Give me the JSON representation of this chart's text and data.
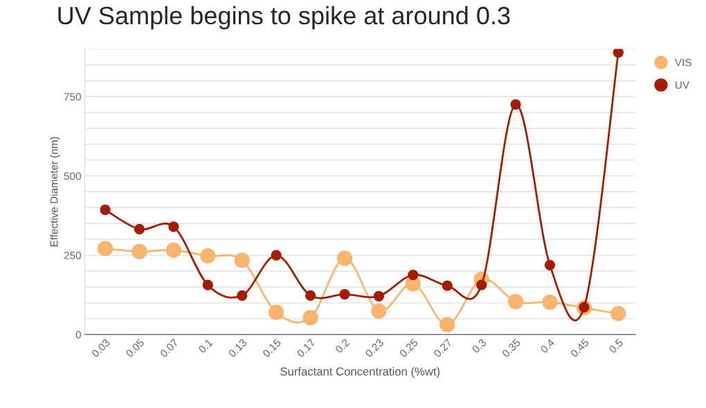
{
  "chart_data": {
    "type": "line",
    "title": "UV Sample begins to spike at around 0.3",
    "xlabel": "Surfactant Concentration (%wt)",
    "ylabel": "Effective Diameter (nm)",
    "categories": [
      "0.03",
      "0.05",
      "0.07",
      "0.1",
      "0.13",
      "0.15",
      "0.17",
      "0.2",
      "0.23",
      "0.25",
      "0.27",
      "0.3",
      "0.35",
      "0.4",
      "0.45",
      "0.5"
    ],
    "series": [
      {
        "name": "VIS",
        "color": "#f9b46e",
        "values": [
          271,
          262,
          266,
          248,
          234,
          70,
          53,
          240,
          74,
          160,
          31,
          174,
          104,
          102,
          84,
          66
        ]
      },
      {
        "name": "UV",
        "color": "#a61c00",
        "values": [
          393,
          332,
          340,
          156,
          123,
          250,
          123,
          127,
          121,
          188,
          154,
          156,
          725,
          219,
          86,
          889
        ]
      }
    ],
    "ylim": [
      0,
      900
    ],
    "yticks": [
      0,
      {
        "value": 50,
        "label": null
      },
      {
        "value": 100,
        "label": null
      },
      {
        "value": 150,
        "label": null
      },
      {
        "value": 200,
        "label": null
      },
      250,
      {
        "value": 300,
        "label": null
      },
      {
        "value": 350,
        "label": null
      },
      {
        "value": 400,
        "label": null
      },
      {
        "value": 450,
        "label": null
      },
      500,
      {
        "value": 550,
        "label": null
      },
      {
        "value": 600,
        "label": null
      },
      {
        "value": 650,
        "label": null
      },
      {
        "value": 700,
        "label": null
      },
      750,
      {
        "value": 800,
        "label": null
      },
      {
        "value": 850,
        "label": null
      },
      {
        "value": 900,
        "label": null
      }
    ],
    "grid": "y",
    "legend": "top right",
    "marker": "circle",
    "line_style": "solid"
  }
}
